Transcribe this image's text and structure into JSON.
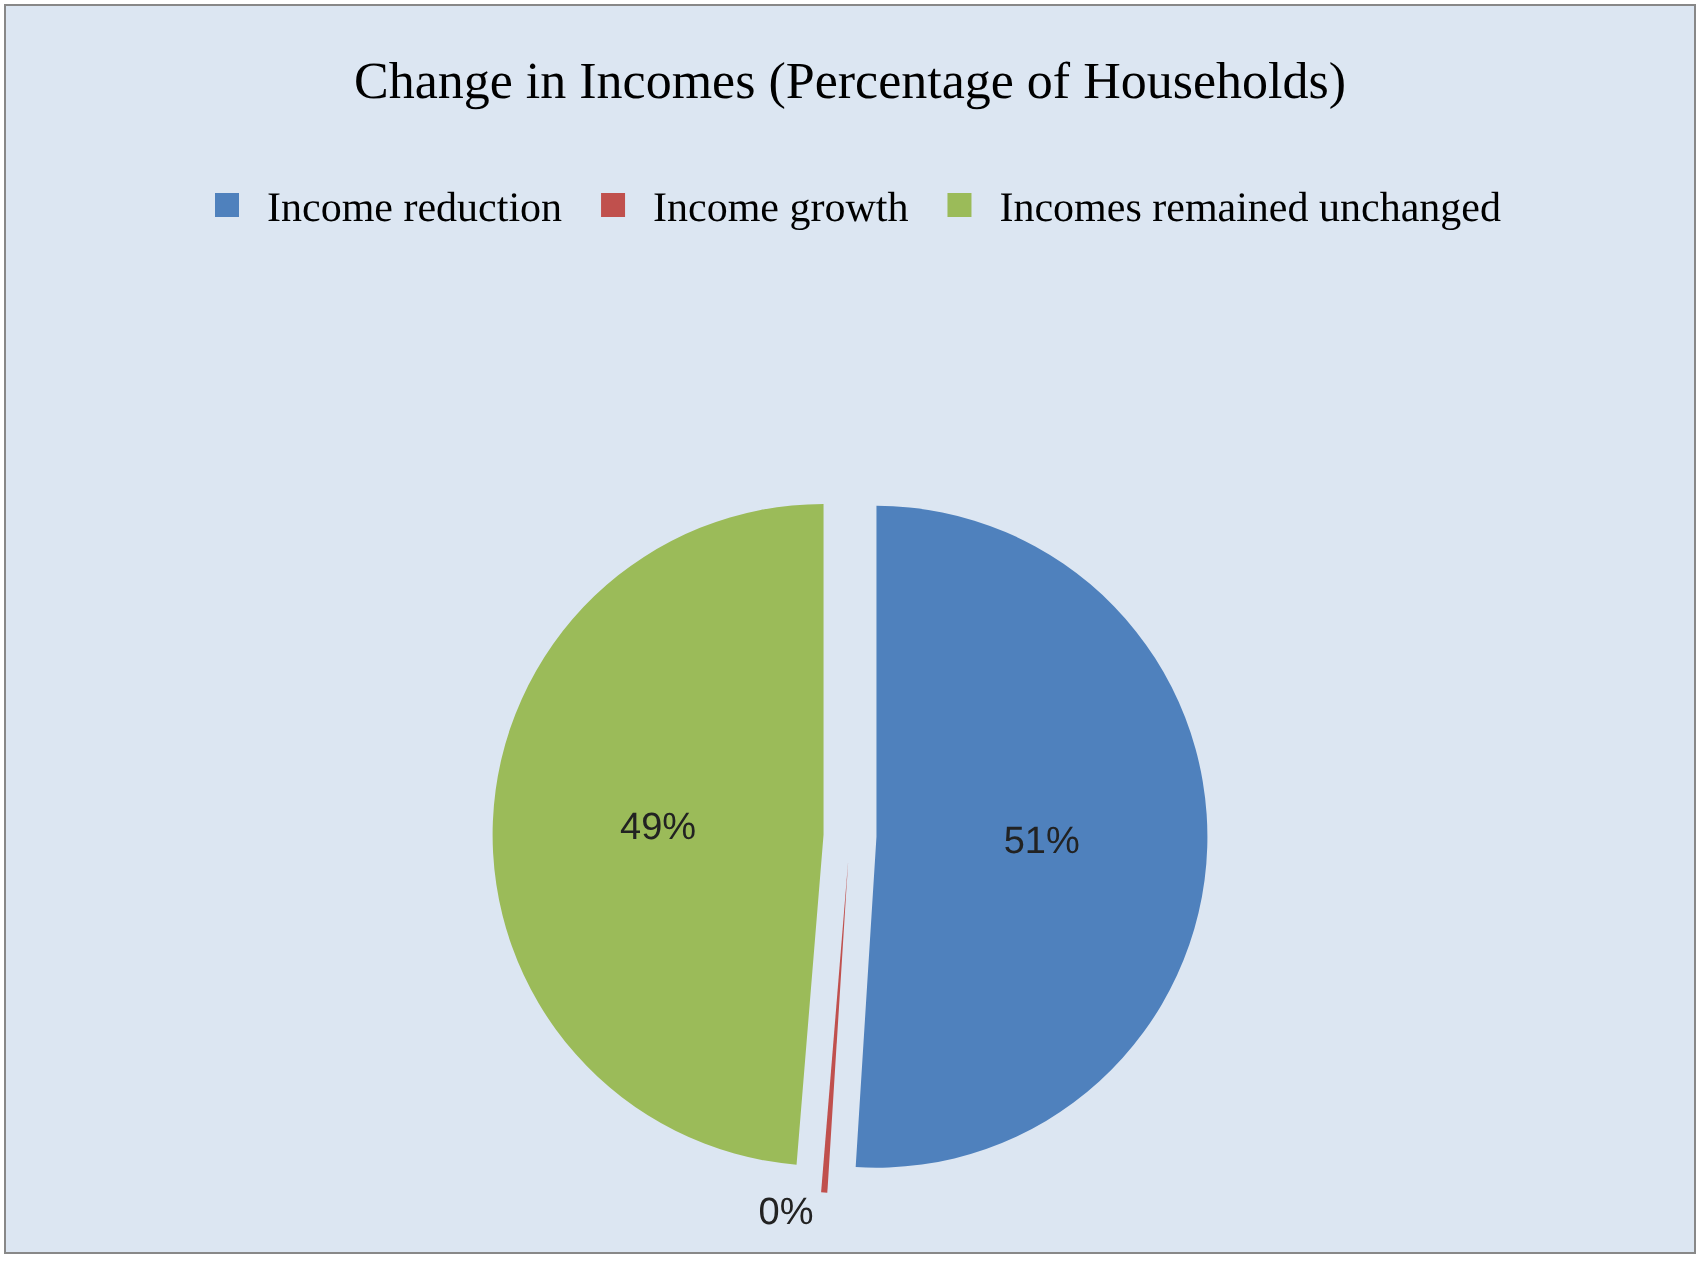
{
  "chart_data": {
    "type": "pie",
    "title": "Change in Incomes (Percentage of Households)",
    "categories": [
      "Income reduction",
      "Income growth",
      "Incomes remained unchanged"
    ],
    "values": [
      51,
      0.3,
      48.7
    ],
    "value_labels": [
      "51%",
      "0%",
      "49%"
    ],
    "colors": [
      "#4f81bd",
      "#c0504d",
      "#9bbb59"
    ],
    "legend": "top"
  }
}
